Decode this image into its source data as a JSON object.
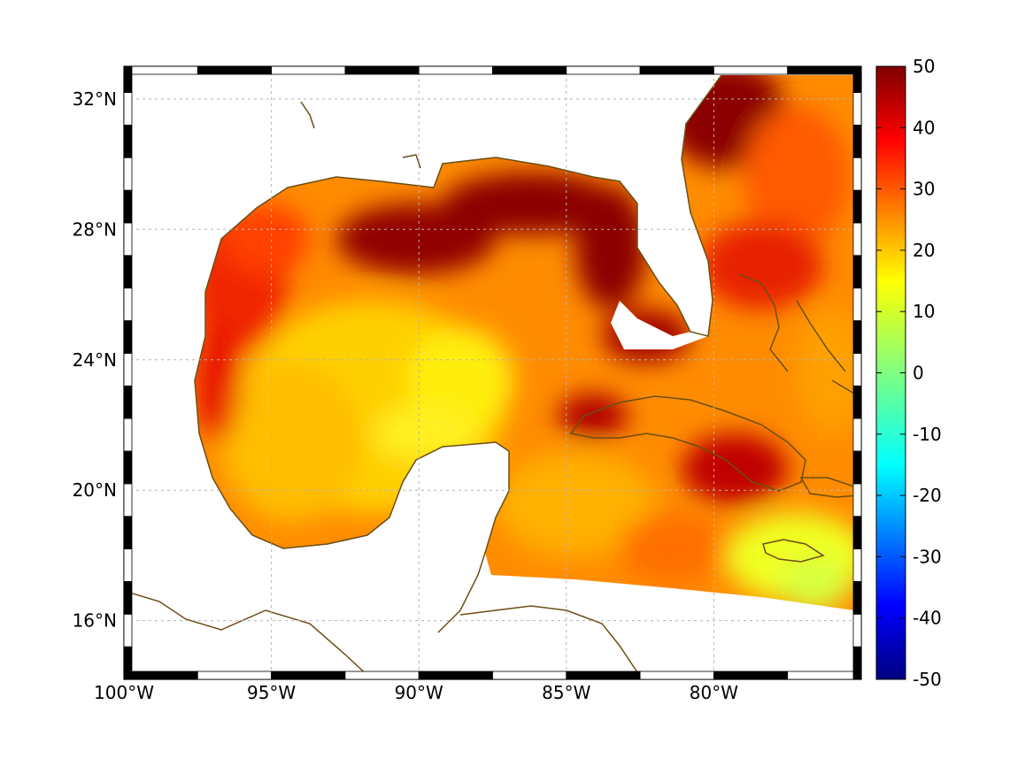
{
  "map": {
    "lon_range": [
      -100,
      -75
    ],
    "lat_range": [
      14.2,
      33
    ],
    "lon_ticks": [
      {
        "value": -100,
        "label": "100°W"
      },
      {
        "value": -95,
        "label": "95°W"
      },
      {
        "value": -90,
        "label": "90°W"
      },
      {
        "value": -85,
        "label": "85°W"
      },
      {
        "value": -80,
        "label": "80°W"
      }
    ],
    "lat_ticks": [
      {
        "value": 32,
        "label": "32°N"
      },
      {
        "value": 28,
        "label": "28°N"
      },
      {
        "value": 24,
        "label": "24°N"
      },
      {
        "value": 20,
        "label": "20°N"
      },
      {
        "value": 16,
        "label": "16°N"
      }
    ],
    "grid": true,
    "coastline_color": "#6b4e16",
    "land_color": "#ffffff",
    "region": "Gulf of Mexico and western Caribbean"
  },
  "colorbar": {
    "colormap": "jet",
    "min": -50,
    "max": 50,
    "ticks": [
      "50",
      "40",
      "30",
      "20",
      "10",
      "0",
      "-10",
      "-20",
      "-30",
      "-40",
      "-50"
    ],
    "placement": "right"
  }
}
